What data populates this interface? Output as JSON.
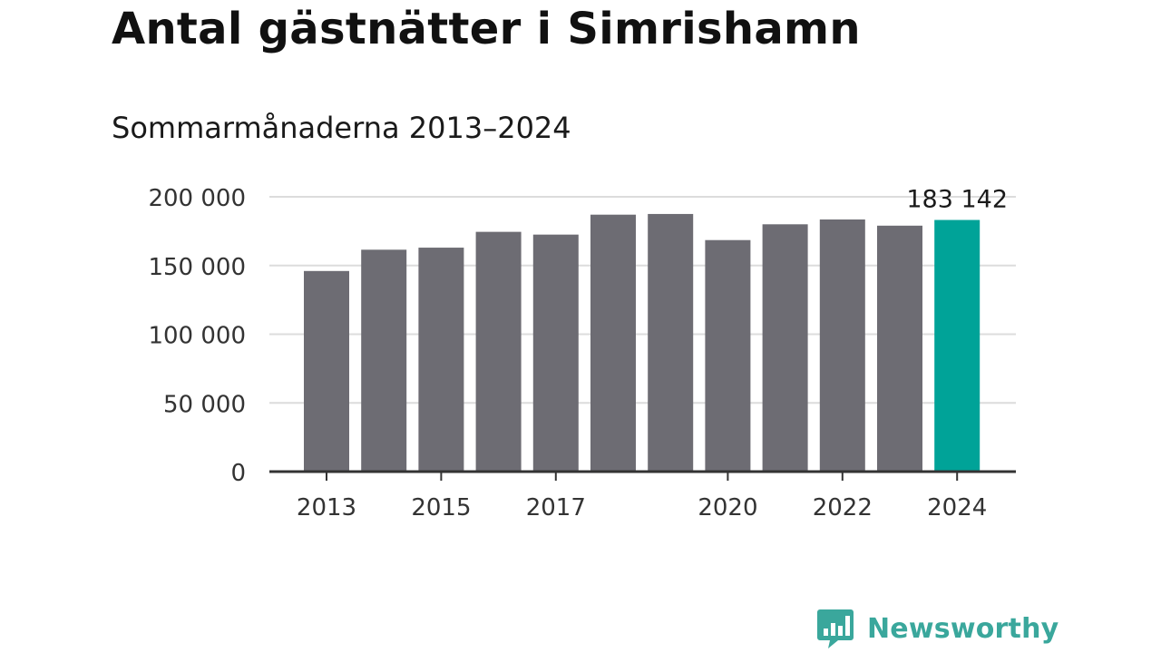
{
  "header": {
    "title": "Antal gästnätter i Simrishamn",
    "subtitle": "Sommarmånaderna 2013–2024"
  },
  "brand": {
    "name": "Newsworthy",
    "icon": "newsworthy-logo-icon"
  },
  "colors": {
    "bar": "#6d6c73",
    "highlight": "#00a398",
    "grid": "#dcdcdc",
    "axis": "#333333",
    "brand": "#3aa79c"
  },
  "chart_data": {
    "type": "bar",
    "title": "Antal gästnätter i Simrishamn",
    "subtitle": "Sommarmånaderna 2013–2024",
    "xlabel": "",
    "ylabel": "",
    "categories": [
      "2013",
      "2014",
      "2015",
      "2016",
      "2017",
      "2018",
      "2019",
      "2020",
      "2021",
      "2022",
      "2023",
      "2024"
    ],
    "values": [
      146000,
      161500,
      163000,
      174500,
      172500,
      187000,
      187500,
      168500,
      180000,
      183500,
      179000,
      183142
    ],
    "highlight_index": 11,
    "highlight_label": "183 142",
    "x_tick_labels": [
      "2013",
      "2015",
      "2017",
      "2020",
      "2022",
      "2024"
    ],
    "y_ticks": [
      0,
      50000,
      100000,
      150000,
      200000
    ],
    "y_tick_labels": [
      "0",
      "50 000",
      "100 000",
      "150 000",
      "200 000"
    ],
    "ylim": [
      0,
      200000
    ],
    "grid": true,
    "legend": "none"
  }
}
